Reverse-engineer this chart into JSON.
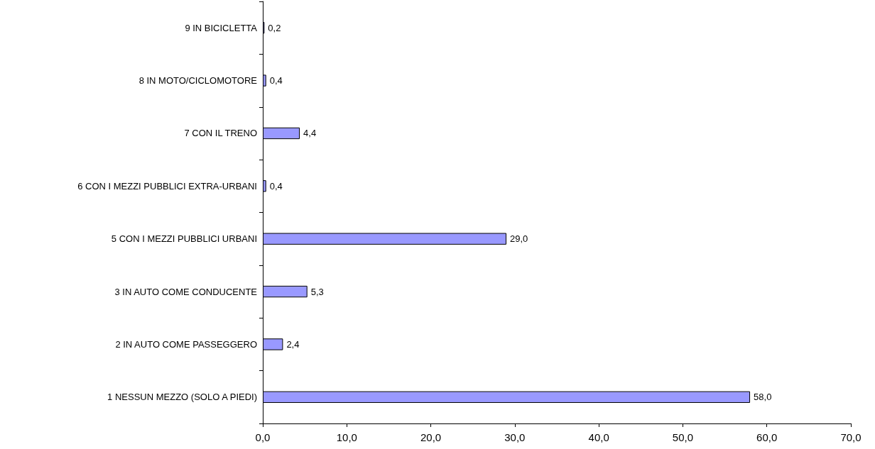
{
  "chart_data": {
    "type": "bar",
    "orientation": "horizontal",
    "categories": [
      "9 IN BICICLETTA",
      "8 IN MOTO/CICLOMOTORE",
      "7 CON IL TRENO",
      "6 CON I MEZZI PUBBLICI EXTRA-URBANI",
      "5 CON I MEZZI PUBBLICI URBANI",
      "3 IN AUTO COME CONDUCENTE",
      "2 IN AUTO COME PASSEGGERO",
      "1 NESSUN MEZZO (SOLO A PIEDI)"
    ],
    "values": [
      0.2,
      0.4,
      4.4,
      0.4,
      29.0,
      5.3,
      2.4,
      58.0
    ],
    "value_labels": [
      "0,2",
      "0,4",
      "4,4",
      "0,4",
      "29,0",
      "5,3",
      "2,4",
      "58,0"
    ],
    "color": "#9999ff",
    "xlim": [
      0,
      70
    ],
    "xticks": [
      {
        "value": 0,
        "label": "0,0"
      },
      {
        "value": 10,
        "label": "10,0"
      },
      {
        "value": 20,
        "label": "20,0"
      },
      {
        "value": 30,
        "label": "30,0"
      },
      {
        "value": 40,
        "label": "40,0"
      },
      {
        "value": 50,
        "label": "50,0"
      },
      {
        "value": 60,
        "label": "60,0"
      },
      {
        "value": 70,
        "label": "70,0"
      }
    ],
    "grid": false
  }
}
